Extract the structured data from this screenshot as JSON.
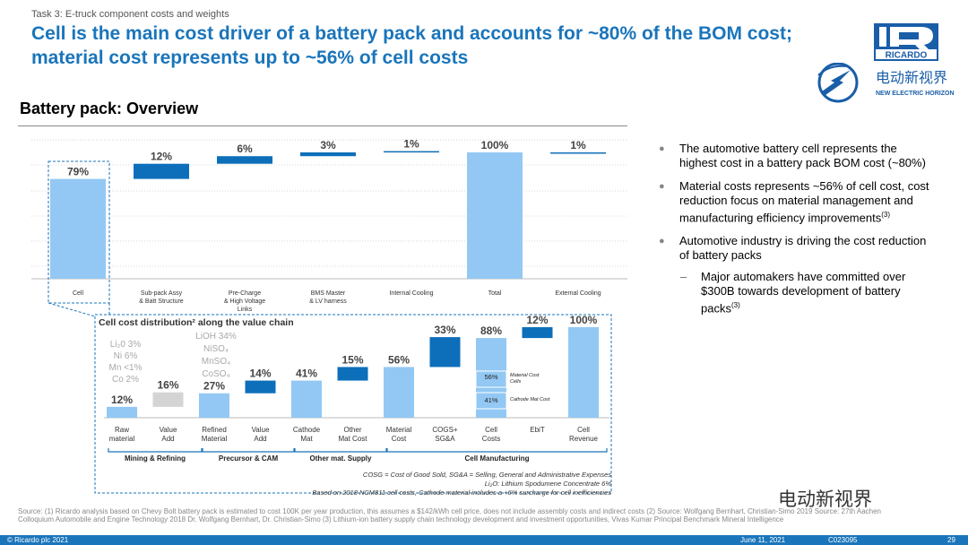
{
  "header": {
    "task": "Task 3: E-truck component costs and weights",
    "title": "Cell is the main cost driver of a battery pack and accounts for ~80% of the BOM cost; material cost represents up to ~56% of cell costs",
    "logo_text": "RICARDO",
    "brand_cn": "电动新视界",
    "brand_en": "NEW ELECTRIC HORIZON"
  },
  "section_title": "Battery pack: Overview",
  "chart_data": [
    {
      "type": "bar",
      "title": "",
      "categories": [
        "Cell",
        "Sub-pack Assy & Batt Structure",
        "Pre-Charge & High Voltage Links",
        "BMS Master & LV harness",
        "Internal Cooling",
        "Total",
        "External Cooling"
      ],
      "values": [
        79,
        12,
        6,
        3,
        1,
        100,
        1
      ],
      "value_labels": [
        "79%",
        "12%",
        "6%",
        "3%",
        "1%",
        "100%",
        "1%"
      ],
      "ylim": [
        0,
        100
      ]
    },
    {
      "type": "bar",
      "title": "Cell cost distribution² along the value chain",
      "categories": [
        "Raw material",
        "Value Add",
        "Refined Material",
        "Value Add",
        "Cathode Mat",
        "Other Mat Cost",
        "Material Cost",
        "COGS+ SG&A",
        "Cell Costs",
        "EbiT",
        "Cell Revenue"
      ],
      "values": [
        12,
        16,
        27,
        14,
        41,
        15,
        56,
        33,
        88,
        12,
        100
      ],
      "value_labels": [
        "12%",
        "16%",
        "27%",
        "14%",
        "41%",
        "15%",
        "56%",
        "33%",
        "88%",
        "12%",
        "100%"
      ],
      "inner_labels": [
        {
          "value": "56%",
          "text": "Material Cost Cells"
        },
        {
          "value": "41%",
          "text": "Cathode Mat Cost"
        }
      ],
      "groups": [
        "Mining & Refining",
        "Precursor & CAM",
        "Other mat. Supply",
        "Cell Manufacturing"
      ],
      "annot_raw": [
        "Li₂0 3%",
        "Ni 6%",
        "Mn <1%",
        "Co 2%"
      ],
      "annot_refined": [
        "LiOH 34%",
        "NiSO₄",
        "MnSO₄",
        "CoSO₄"
      ],
      "notes": [
        "COSG = Cost of Good Sold, SG&A = Selling, General and Administrative Expenses",
        "Li₂O: Lithium Spodumene Concentrate 6%",
        "Based on 2018 NCM811 cell costs, Cathode material includes a +6% surcharge for cell inefficiencies"
      ]
    }
  ],
  "colors": {
    "bar_light": "#93c8f4",
    "bar_dark": "#0d6fba",
    "bar_grey": "#d4d4d4",
    "title": "#1a75bb"
  },
  "bullets": [
    {
      "text": "The automotive battery cell represents the highest cost in a battery pack BOM cost (~80%)"
    },
    {
      "text": "Material costs represents ~56% of cell cost, cost reduction focus on material management and manufacturing efficiency improvements",
      "sup": "(3)"
    },
    {
      "text": "Automotive industry is driving the cost reduction of battery packs"
    }
  ],
  "sub_bullet": {
    "text": "Major automakers have committed over $300B towards development of battery packs",
    "sup": "(3)"
  },
  "source": "Source: (1) Ricardo analysis based on Chevy Bolt battery pack is estimated to cost 100K per year production, this assumes a $142/kWh cell price, does not include assembly costs and indirect costs (2) Source: Wolfgang Bernhart, Christian-Simo 2019 Source: 27th Aachen Colloquium Automobile and Engine Technology 2018 Dr. Wolfgang Bernhart, Dr. Christian-Simo (3) Lithium-ion battery supply chain technology development and investment opportunities, Vivas Kumar Principal Benchmark Mineral Intelligence",
  "footer": {
    "copyright": "© Ricardo plc 2021",
    "date": "June 11, 2021",
    "code": "C023095",
    "page": "29"
  },
  "watermark": "电动新视界"
}
